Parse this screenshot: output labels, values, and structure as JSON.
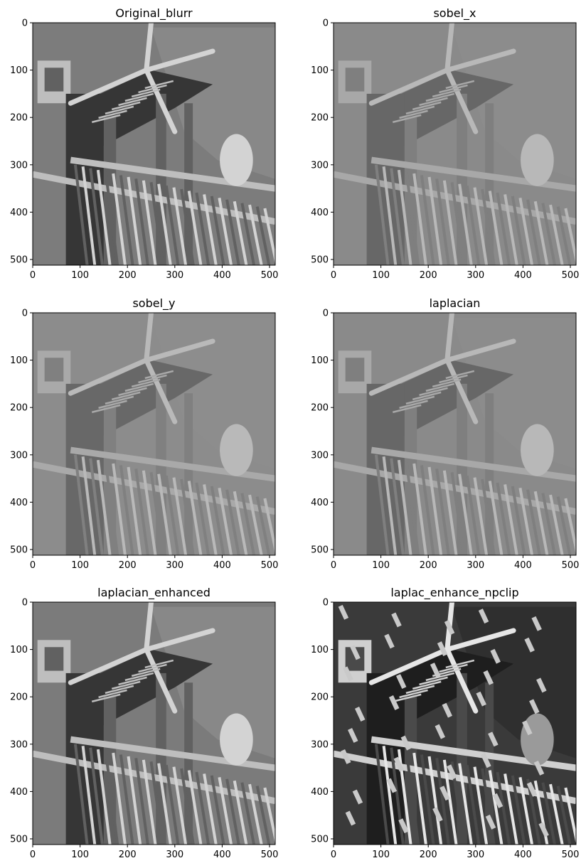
{
  "chart_data": [
    {
      "type": "image",
      "title": "Original_blurr",
      "xlim": [
        0,
        512
      ],
      "ylim": [
        512,
        0
      ],
      "xticks": [
        0,
        100,
        200,
        300,
        400,
        500
      ],
      "yticks": [
        0,
        100,
        200,
        300,
        400,
        500
      ],
      "colormap": "gray",
      "tone": {
        "base": "#7d7d7d",
        "style": "photo"
      }
    },
    {
      "type": "image",
      "title": "sobel_x",
      "xlim": [
        0,
        512
      ],
      "ylim": [
        512,
        0
      ],
      "xticks": [
        0,
        100,
        200,
        300,
        400,
        500
      ],
      "yticks": [
        0,
        100,
        200,
        300,
        400,
        500
      ],
      "colormap": "gray",
      "tone": {
        "base": "#8a8a8a",
        "style": "edge"
      }
    },
    {
      "type": "image",
      "title": "sobel_y",
      "xlim": [
        0,
        512
      ],
      "ylim": [
        512,
        0
      ],
      "xticks": [
        0,
        100,
        200,
        300,
        400,
        500
      ],
      "yticks": [
        0,
        100,
        200,
        300,
        400,
        500
      ],
      "colormap": "gray",
      "tone": {
        "base": "#8c8c8c",
        "style": "edge"
      }
    },
    {
      "type": "image",
      "title": "laplacian",
      "xlim": [
        0,
        512
      ],
      "ylim": [
        512,
        0
      ],
      "xticks": [
        0,
        100,
        200,
        300,
        400,
        500
      ],
      "yticks": [
        0,
        100,
        200,
        300,
        400,
        500
      ],
      "colormap": "gray",
      "tone": {
        "base": "#8a8a8a",
        "style": "edge"
      }
    },
    {
      "type": "image",
      "title": "laplacian_enhanced",
      "xlim": [
        0,
        512
      ],
      "ylim": [
        512,
        0
      ],
      "xticks": [
        0,
        100,
        200,
        300,
        400,
        500
      ],
      "yticks": [
        0,
        100,
        200,
        300,
        400,
        500
      ],
      "colormap": "gray",
      "tone": {
        "base": "#7b7b7b",
        "style": "photo"
      }
    },
    {
      "type": "image",
      "title": "laplac_enhance_npclip",
      "xlim": [
        0,
        512
      ],
      "ylim": [
        512,
        0
      ],
      "xticks": [
        0,
        100,
        200,
        300,
        400,
        500
      ],
      "yticks": [
        0,
        100,
        200,
        300,
        400,
        500
      ],
      "colormap": "gray",
      "tone": {
        "base": "#3a3a3a",
        "style": "clip"
      }
    }
  ]
}
